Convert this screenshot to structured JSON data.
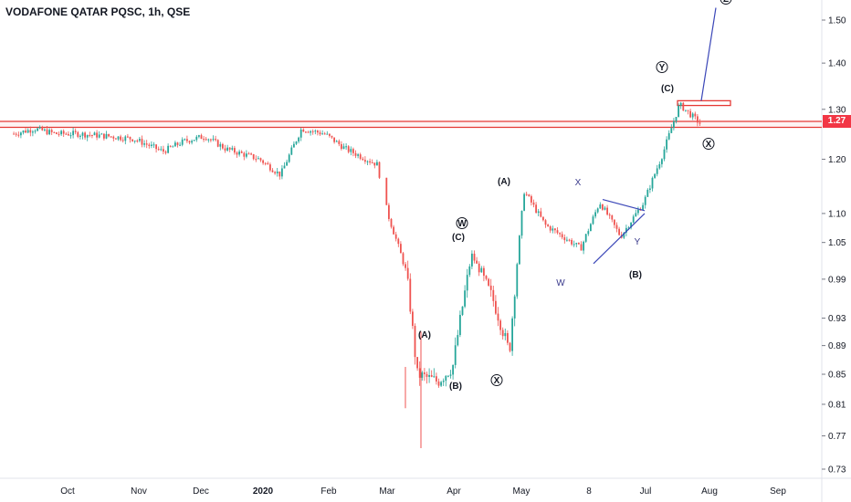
{
  "header": {
    "title": "VODAFONE QATAR PQSC, 1h, QSE"
  },
  "price_badge": "1.27",
  "colors": {
    "up": "#26a69a",
    "down": "#ef5350",
    "resistance": "#e53935",
    "trendline": "#3b47b8",
    "text": "#131722"
  },
  "chart_data": {
    "type": "candlestick",
    "title": "VODAFONE QATAR PQSC, 1h, QSE",
    "y_scale": "log",
    "y_ticks": [
      "1.50",
      "1.40",
      "1.30",
      "1.20",
      "1.10",
      "1.05",
      "0.99",
      "0.93",
      "0.89",
      "0.85",
      "0.81",
      "0.77",
      "0.73"
    ],
    "x_ticks": [
      {
        "label": "Oct",
        "bold": false
      },
      {
        "label": "Nov",
        "bold": false
      },
      {
        "label": "Dec",
        "bold": false
      },
      {
        "label": "2020",
        "bold": true
      },
      {
        "label": "Feb",
        "bold": false
      },
      {
        "label": "Mar",
        "bold": false
      },
      {
        "label": "Apr",
        "bold": false
      },
      {
        "label": "May",
        "bold": false
      },
      {
        "label": "8",
        "bold": false
      },
      {
        "label": "Jul",
        "bold": false
      },
      {
        "label": "Aug",
        "bold": false
      },
      {
        "label": "Sep",
        "bold": false
      }
    ],
    "last_price": 1.27,
    "resistance_levels": [
      1.275,
      1.263
    ],
    "target_zone": [
      1.318,
      1.308
    ],
    "price_path": [
      [
        "Sep 5",
        1.25
      ],
      [
        "Sep 15",
        1.26
      ],
      [
        "Sep 25",
        1.25
      ],
      [
        "Oct 5",
        1.25
      ],
      [
        "Oct 20",
        1.245
      ],
      [
        "Nov 1",
        1.24
      ],
      [
        "Nov 15",
        1.215
      ],
      [
        "Nov 25",
        1.235
      ],
      [
        "Dec 5",
        1.245
      ],
      [
        "Dec 15",
        1.22
      ],
      [
        "Dec 31",
        1.2
      ],
      [
        "Jan 10",
        1.17
      ],
      [
        "Jan 20",
        1.26
      ],
      [
        "Jan 31",
        1.25
      ],
      [
        "Feb 10",
        1.22
      ],
      [
        "Feb 25",
        1.19
      ],
      [
        "Mar 1",
        1.1
      ],
      [
        "Mar 10",
        1.0
      ],
      [
        "Mar 15",
        0.85
      ],
      [
        "Mar 25",
        0.84
      ],
      [
        "Apr 1",
        0.86
      ],
      [
        "Apr 10",
        1.03
      ],
      [
        "Apr 20",
        0.96
      ],
      [
        "Apr 28",
        0.88
      ],
      [
        "May 5",
        1.14
      ],
      [
        "May 15",
        1.08
      ],
      [
        "Jun 1",
        1.04
      ],
      [
        "Jun 10",
        1.12
      ],
      [
        "Jun 20",
        1.06
      ],
      [
        "Jul 1",
        1.12
      ],
      [
        "Jul 10",
        1.21
      ],
      [
        "Jul 18",
        1.31
      ],
      [
        "Jul 28",
        1.27
      ]
    ],
    "wave_labels": [
      {
        "text": "(A)",
        "style": "bold"
      },
      {
        "text": "(B)",
        "style": "bold"
      },
      {
        "text": "(C)",
        "style": "bold"
      },
      {
        "text": "W",
        "style": "circled"
      },
      {
        "text": "X",
        "style": "circled"
      },
      {
        "text": "(A)",
        "style": "bold"
      },
      {
        "text": "W",
        "style": "light"
      },
      {
        "text": "X",
        "style": "light"
      },
      {
        "text": "Y",
        "style": "light"
      },
      {
        "text": "(B)",
        "style": "bold"
      },
      {
        "text": "(C)",
        "style": "bold"
      },
      {
        "text": "Y",
        "style": "circled"
      },
      {
        "text": "X",
        "style": "circled"
      },
      {
        "text": "Z",
        "style": "circled"
      }
    ]
  }
}
